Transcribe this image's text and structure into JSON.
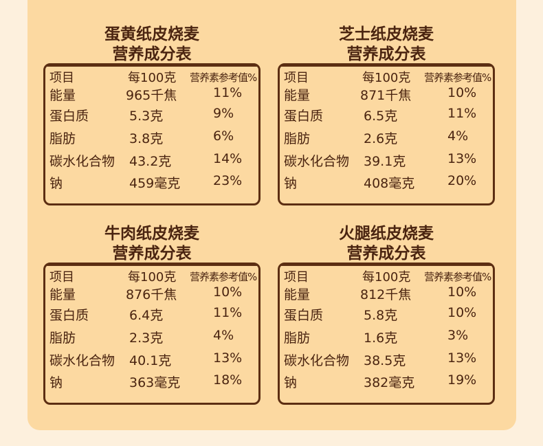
{
  "tables": [
    {
      "title": [
        "蛋黄纸皮烧麦",
        "营养成分表"
      ],
      "header": [
        "项目",
        "每100克",
        "营养素参考值%"
      ],
      "rows": [
        [
          "能量",
          "965千焦",
          "11%"
        ],
        [
          "蛋白质",
          "5.3克",
          "9%"
        ],
        [
          "脂肪",
          "3.8克",
          "6%"
        ],
        [
          "碳水化合物",
          "43.2克",
          "14%"
        ],
        [
          "钠",
          "459毫克",
          "23%"
        ]
      ]
    },
    {
      "title": [
        "芝士纸皮烧麦",
        "营养成分表"
      ],
      "header": [
        "项目",
        "每100克",
        "营养素参考值%"
      ],
      "rows": [
        [
          "能量",
          "871千焦",
          "10%"
        ],
        [
          "蛋白质",
          "6.5克",
          "11%"
        ],
        [
          "脂肪",
          "2.6克",
          "4%"
        ],
        [
          "碳水化合物",
          "39.1克",
          "13%"
        ],
        [
          "钠",
          "408毫克",
          "20%"
        ]
      ]
    },
    {
      "title": [
        "牛肉纸皮烧麦",
        "营养成分表"
      ],
      "header": [
        "项目",
        "每100克",
        "营养素参考值%"
      ],
      "rows": [
        [
          "能量",
          "876千焦",
          "10%"
        ],
        [
          "蛋白质",
          "6.4克",
          "11%"
        ],
        [
          "脂肪",
          "2.3克",
          "4%"
        ],
        [
          "碳水化合物",
          "40.1克",
          "13%"
        ],
        [
          "钠",
          "363毫克",
          "18%"
        ]
      ]
    },
    {
      "title": [
        "火腿纸皮烧麦",
        "营养成分表"
      ],
      "header": [
        "项目",
        "每100克",
        "营养素参考值%"
      ],
      "rows": [
        [
          "能量",
          "812千焦",
          "10%"
        ],
        [
          "蛋白质",
          "5.8克",
          "10%"
        ],
        [
          "脂肪",
          "1.6克",
          "3%"
        ],
        [
          "碳水化合物",
          "38.5克",
          "13%"
        ],
        [
          "钠",
          "382毫克",
          "19%"
        ]
      ]
    }
  ]
}
